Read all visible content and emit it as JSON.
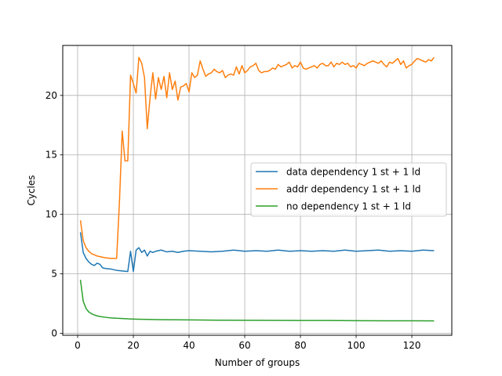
{
  "chart_data": {
    "type": "line",
    "title": "",
    "xlabel": "Number of groups",
    "ylabel": "Cycles",
    "xlim": [
      -5.35,
      134.35
    ],
    "ylim": [
      -0.16,
      24.2
    ],
    "xticks": [
      0,
      20,
      40,
      60,
      80,
      100,
      120
    ],
    "yticks": [
      0,
      5,
      10,
      15,
      20
    ],
    "grid": true,
    "legend_position": "center-right",
    "series": [
      {
        "name": "data dependency 1 st + 1 ld",
        "color": "#1f77b4",
        "points": [
          [
            1,
            8.5
          ],
          [
            2,
            6.8
          ],
          [
            3,
            6.3
          ],
          [
            4,
            6.0
          ],
          [
            5,
            5.8
          ],
          [
            6,
            5.7
          ],
          [
            7,
            5.9
          ],
          [
            8,
            5.8
          ],
          [
            9,
            5.5
          ],
          [
            10,
            5.45
          ],
          [
            12,
            5.4
          ],
          [
            14,
            5.3
          ],
          [
            16,
            5.25
          ],
          [
            18,
            5.2
          ],
          [
            19,
            6.9
          ],
          [
            20,
            5.2
          ],
          [
            21,
            7.0
          ],
          [
            22,
            7.2
          ],
          [
            23,
            6.8
          ],
          [
            24,
            7.0
          ],
          [
            25,
            6.5
          ],
          [
            26,
            6.9
          ],
          [
            27,
            6.8
          ],
          [
            28,
            6.9
          ],
          [
            30,
            7.0
          ],
          [
            32,
            6.85
          ],
          [
            34,
            6.9
          ],
          [
            36,
            6.8
          ],
          [
            38,
            6.9
          ],
          [
            40,
            6.95
          ],
          [
            44,
            6.9
          ],
          [
            48,
            6.85
          ],
          [
            52,
            6.9
          ],
          [
            56,
            7.0
          ],
          [
            60,
            6.9
          ],
          [
            64,
            6.95
          ],
          [
            68,
            6.9
          ],
          [
            72,
            7.0
          ],
          [
            76,
            6.9
          ],
          [
            80,
            6.95
          ],
          [
            84,
            6.9
          ],
          [
            88,
            6.95
          ],
          [
            92,
            6.9
          ],
          [
            96,
            7.0
          ],
          [
            100,
            6.9
          ],
          [
            104,
            6.95
          ],
          [
            108,
            7.0
          ],
          [
            112,
            6.9
          ],
          [
            116,
            6.95
          ],
          [
            120,
            6.9
          ],
          [
            124,
            7.0
          ],
          [
            128,
            6.95
          ]
        ]
      },
      {
        "name": "addr dependency 1 st + 1 ld",
        "color": "#ff7f0e",
        "points": [
          [
            1,
            9.5
          ],
          [
            2,
            7.8
          ],
          [
            3,
            7.2
          ],
          [
            4,
            6.9
          ],
          [
            5,
            6.7
          ],
          [
            6,
            6.6
          ],
          [
            7,
            6.5
          ],
          [
            8,
            6.45
          ],
          [
            10,
            6.35
          ],
          [
            12,
            6.3
          ],
          [
            14,
            6.3
          ],
          [
            15,
            11.0
          ],
          [
            16,
            17.0
          ],
          [
            17,
            14.5
          ],
          [
            18,
            14.5
          ],
          [
            19,
            21.7
          ],
          [
            20,
            21.0
          ],
          [
            21,
            20.2
          ],
          [
            22,
            23.2
          ],
          [
            23,
            22.7
          ],
          [
            24,
            21.5
          ],
          [
            25,
            17.2
          ],
          [
            26,
            19.8
          ],
          [
            27,
            21.9
          ],
          [
            28,
            19.7
          ],
          [
            29,
            21.5
          ],
          [
            30,
            20.5
          ],
          [
            31,
            21.6
          ],
          [
            32,
            19.8
          ],
          [
            33,
            21.9
          ],
          [
            34,
            20.5
          ],
          [
            35,
            21.2
          ],
          [
            36,
            19.6
          ],
          [
            37,
            20.7
          ],
          [
            38,
            20.8
          ],
          [
            39,
            21.0
          ],
          [
            40,
            20.3
          ],
          [
            41,
            21.9
          ],
          [
            42,
            21.5
          ],
          [
            43,
            21.7
          ],
          [
            44,
            22.9
          ],
          [
            45,
            22.2
          ],
          [
            46,
            21.6
          ],
          [
            47,
            21.8
          ],
          [
            48,
            21.9
          ],
          [
            49,
            22.2
          ],
          [
            50,
            22.0
          ],
          [
            51,
            21.9
          ],
          [
            52,
            22.1
          ],
          [
            53,
            21.5
          ],
          [
            54,
            21.7
          ],
          [
            55,
            21.8
          ],
          [
            56,
            21.7
          ],
          [
            57,
            22.4
          ],
          [
            58,
            21.8
          ],
          [
            59,
            22.5
          ],
          [
            60,
            21.9
          ],
          [
            61,
            22.1
          ],
          [
            62,
            22.4
          ],
          [
            63,
            22.5
          ],
          [
            64,
            22.7
          ],
          [
            65,
            22.1
          ],
          [
            66,
            21.9
          ],
          [
            67,
            22.0
          ],
          [
            68,
            22.0
          ],
          [
            69,
            22.1
          ],
          [
            70,
            22.3
          ],
          [
            71,
            22.2
          ],
          [
            72,
            22.6
          ],
          [
            73,
            22.4
          ],
          [
            74,
            22.5
          ],
          [
            75,
            22.6
          ],
          [
            76,
            22.8
          ],
          [
            77,
            22.3
          ],
          [
            78,
            22.5
          ],
          [
            79,
            22.4
          ],
          [
            80,
            22.8
          ],
          [
            81,
            22.3
          ],
          [
            82,
            22.2
          ],
          [
            83,
            22.3
          ],
          [
            84,
            22.4
          ],
          [
            85,
            22.5
          ],
          [
            86,
            22.3
          ],
          [
            87,
            22.6
          ],
          [
            88,
            22.7
          ],
          [
            89,
            22.5
          ],
          [
            90,
            22.5
          ],
          [
            91,
            22.8
          ],
          [
            92,
            22.4
          ],
          [
            93,
            22.7
          ],
          [
            94,
            22.6
          ],
          [
            95,
            22.8
          ],
          [
            96,
            22.6
          ],
          [
            97,
            22.7
          ],
          [
            98,
            22.4
          ],
          [
            99,
            22.5
          ],
          [
            100,
            22.3
          ],
          [
            101,
            22.7
          ],
          [
            102,
            22.6
          ],
          [
            103,
            22.5
          ],
          [
            104,
            22.7
          ],
          [
            105,
            22.8
          ],
          [
            106,
            22.9
          ],
          [
            107,
            22.8
          ],
          [
            108,
            22.7
          ],
          [
            109,
            22.9
          ],
          [
            110,
            22.6
          ],
          [
            111,
            22.4
          ],
          [
            112,
            22.8
          ],
          [
            113,
            22.7
          ],
          [
            114,
            22.9
          ],
          [
            115,
            23.1
          ],
          [
            116,
            22.6
          ],
          [
            117,
            22.9
          ],
          [
            118,
            22.3
          ],
          [
            119,
            22.5
          ],
          [
            120,
            22.6
          ],
          [
            121,
            22.9
          ],
          [
            122,
            23.1
          ],
          [
            123,
            23.0
          ],
          [
            124,
            22.9
          ],
          [
            125,
            22.8
          ],
          [
            126,
            23.0
          ],
          [
            127,
            22.9
          ],
          [
            128,
            23.2
          ]
        ]
      },
      {
        "name": "no dependency 1 st + 1 ld",
        "color": "#2ca02c",
        "points": [
          [
            1,
            4.5
          ],
          [
            2,
            2.7
          ],
          [
            3,
            2.1
          ],
          [
            4,
            1.8
          ],
          [
            5,
            1.65
          ],
          [
            6,
            1.55
          ],
          [
            7,
            1.47
          ],
          [
            8,
            1.42
          ],
          [
            10,
            1.35
          ],
          [
            12,
            1.3
          ],
          [
            14,
            1.27
          ],
          [
            16,
            1.25
          ],
          [
            18,
            1.22
          ],
          [
            20,
            1.2
          ],
          [
            25,
            1.17
          ],
          [
            30,
            1.15
          ],
          [
            40,
            1.13
          ],
          [
            50,
            1.11
          ],
          [
            60,
            1.1
          ],
          [
            70,
            1.09
          ],
          [
            80,
            1.08
          ],
          [
            90,
            1.08
          ],
          [
            100,
            1.07
          ],
          [
            110,
            1.06
          ],
          [
            120,
            1.06
          ],
          [
            128,
            1.05
          ]
        ]
      }
    ]
  }
}
